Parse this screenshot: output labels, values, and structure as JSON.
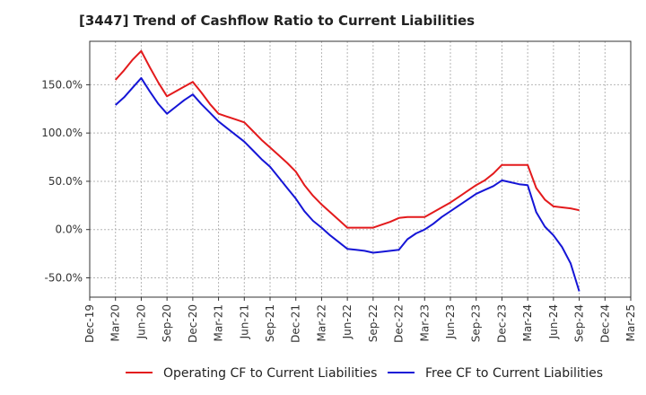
{
  "chart_data": {
    "type": "line",
    "title": "[3447]  Trend of Cashflow Ratio to Current Liabilities",
    "xlabel": "",
    "ylabel": "",
    "x_ticks": [
      "Dec-19",
      "Mar-20",
      "Jun-20",
      "Sep-20",
      "Dec-20",
      "Mar-21",
      "Jun-21",
      "Sep-21",
      "Dec-21",
      "Mar-22",
      "Jun-22",
      "Sep-22",
      "Dec-22",
      "Mar-23",
      "Jun-23",
      "Sep-23",
      "Dec-23",
      "Mar-24",
      "Jun-24",
      "Sep-24",
      "Dec-24",
      "Mar-25"
    ],
    "y_ticks": [
      "-50.0%",
      "0.0%",
      "50.0%",
      "100.0%",
      "150.0%"
    ],
    "y_tick_values": [
      -50,
      0,
      50,
      100,
      150
    ],
    "ylim": [
      -70,
      195
    ],
    "grid": true,
    "legend_position": "bottom",
    "series": [
      {
        "name": "Operating CF to Current Liabilities",
        "color": "#e31a1c",
        "points": [
          [
            "Mar-20",
            155
          ],
          [
            "Apr-20",
            165
          ],
          [
            "May-20",
            176
          ],
          [
            "Jun-20",
            185
          ],
          [
            "Jul-20",
            168
          ],
          [
            "Aug-20",
            152
          ],
          [
            "Sep-20",
            138
          ],
          [
            "Oct-20",
            143
          ],
          [
            "Nov-20",
            148
          ],
          [
            "Dec-20",
            153
          ],
          [
            "Jan-21",
            142
          ],
          [
            "Feb-21",
            130
          ],
          [
            "Mar-21",
            120
          ],
          [
            "Apr-21",
            117
          ],
          [
            "May-21",
            114
          ],
          [
            "Jun-21",
            111
          ],
          [
            "Jul-21",
            102
          ],
          [
            "Aug-21",
            93
          ],
          [
            "Sep-21",
            85
          ],
          [
            "Oct-21",
            77
          ],
          [
            "Nov-21",
            69
          ],
          [
            "Dec-21",
            60
          ],
          [
            "Jan-22",
            46
          ],
          [
            "Feb-22",
            35
          ],
          [
            "Mar-22",
            26
          ],
          [
            "Apr-22",
            18
          ],
          [
            "May-22",
            10
          ],
          [
            "Jun-22",
            2
          ],
          [
            "Jul-22",
            2
          ],
          [
            "Aug-22",
            2
          ],
          [
            "Sep-22",
            2
          ],
          [
            "Oct-22",
            5
          ],
          [
            "Nov-22",
            8
          ],
          [
            "Dec-22",
            12
          ],
          [
            "Jan-23",
            13
          ],
          [
            "Feb-23",
            13
          ],
          [
            "Mar-23",
            13
          ],
          [
            "Apr-23",
            18
          ],
          [
            "May-23",
            23
          ],
          [
            "Jun-23",
            28
          ],
          [
            "Jul-23",
            34
          ],
          [
            "Aug-23",
            40
          ],
          [
            "Sep-23",
            46
          ],
          [
            "Oct-23",
            51
          ],
          [
            "Nov-23",
            58
          ],
          [
            "Dec-23",
            67
          ],
          [
            "Jan-24",
            67
          ],
          [
            "Feb-24",
            67
          ],
          [
            "Mar-24",
            67
          ],
          [
            "Apr-24",
            43
          ],
          [
            "May-24",
            31
          ],
          [
            "Jun-24",
            24
          ],
          [
            "Jul-24",
            23
          ],
          [
            "Aug-24",
            22
          ],
          [
            "Sep-24",
            20
          ]
        ]
      },
      {
        "name": "Free CF to Current Liabilities",
        "color": "#1515d6",
        "points": [
          [
            "Mar-20",
            129
          ],
          [
            "Apr-20",
            137
          ],
          [
            "May-20",
            147
          ],
          [
            "Jun-20",
            157
          ],
          [
            "Jul-20",
            143
          ],
          [
            "Aug-20",
            130
          ],
          [
            "Sep-20",
            120
          ],
          [
            "Oct-20",
            127
          ],
          [
            "Nov-20",
            134
          ],
          [
            "Dec-20",
            140
          ],
          [
            "Jan-21",
            130
          ],
          [
            "Feb-21",
            121
          ],
          [
            "Mar-21",
            112
          ],
          [
            "Apr-21",
            105
          ],
          [
            "May-21",
            98
          ],
          [
            "Jun-21",
            91
          ],
          [
            "Jul-21",
            82
          ],
          [
            "Aug-21",
            73
          ],
          [
            "Sep-21",
            65
          ],
          [
            "Oct-21",
            54
          ],
          [
            "Nov-21",
            43
          ],
          [
            "Dec-21",
            32
          ],
          [
            "Jan-22",
            19
          ],
          [
            "Feb-22",
            9
          ],
          [
            "Mar-22",
            2
          ],
          [
            "Apr-22",
            -6
          ],
          [
            "May-22",
            -13
          ],
          [
            "Jun-22",
            -20
          ],
          [
            "Jul-22",
            -21
          ],
          [
            "Aug-22",
            -22
          ],
          [
            "Sep-22",
            -24
          ],
          [
            "Oct-22",
            -23
          ],
          [
            "Nov-22",
            -22
          ],
          [
            "Dec-22",
            -21
          ],
          [
            "Jan-23",
            -10
          ],
          [
            "Feb-23",
            -4
          ],
          [
            "Mar-23",
            0
          ],
          [
            "Apr-23",
            6
          ],
          [
            "May-23",
            13
          ],
          [
            "Jun-23",
            19
          ],
          [
            "Jul-23",
            25
          ],
          [
            "Aug-23",
            31
          ],
          [
            "Sep-23",
            37
          ],
          [
            "Oct-23",
            41
          ],
          [
            "Nov-23",
            45
          ],
          [
            "Dec-23",
            51
          ],
          [
            "Jan-24",
            49
          ],
          [
            "Feb-24",
            47
          ],
          [
            "Mar-24",
            46
          ],
          [
            "Apr-24",
            18
          ],
          [
            "May-24",
            3
          ],
          [
            "Jun-24",
            -6
          ],
          [
            "Jul-24",
            -18
          ],
          [
            "Aug-24",
            -35
          ],
          [
            "Sep-24",
            -64
          ]
        ]
      }
    ]
  }
}
